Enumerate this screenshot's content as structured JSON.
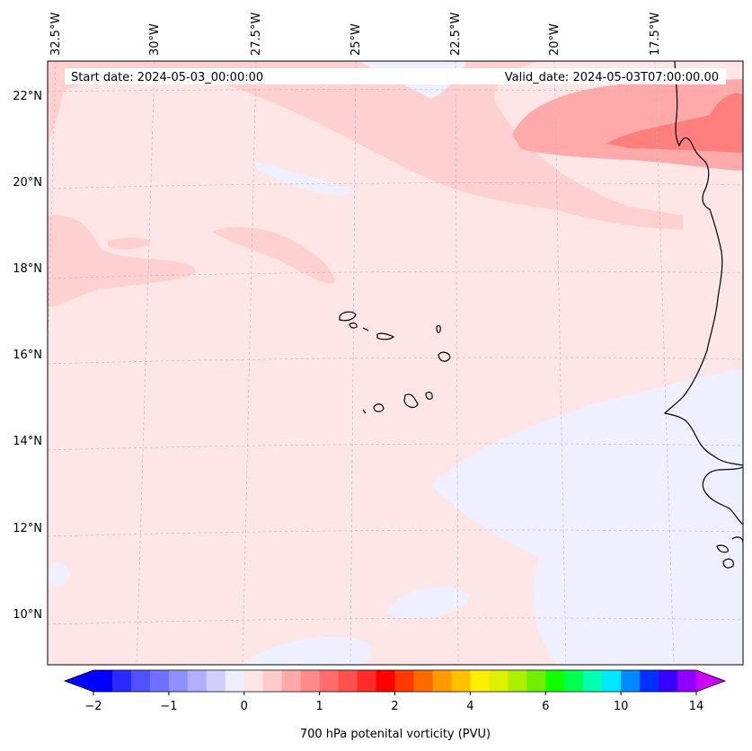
{
  "map": {
    "start_date": "Start date: 2024-05-03_00:00:00",
    "valid_date": "Valid_date: 2024-05-03T07:00:00.00",
    "lon_labels": [
      "32.5°W",
      "30°W",
      "27.5°W",
      "25°W",
      "22.5°W",
      "20°W",
      "17.5°W"
    ],
    "lat_labels": [
      "22°N",
      "20°N",
      "18°N",
      "16°N",
      "14°N",
      "12°N",
      "10°N"
    ],
    "region": "Cape Verde Islands and West African coast",
    "colors": {
      "background": "#ffe6e6",
      "light_pink": "#ffd0d0",
      "mid_pink": "#ffaaaa",
      "strong_pink": "#ff7f7f",
      "lavender": "#eef0ff",
      "coastline": "#000000",
      "gridline": "#bbbbbb"
    }
  },
  "colorbar": {
    "label": "700 hPa potenital vorticity (PVU)",
    "tick_labels": [
      "−2",
      "−1",
      "0",
      "1",
      "2",
      "4",
      "6",
      "10",
      "14"
    ],
    "colors": [
      "#0000ff",
      "#2a2aff",
      "#5050ff",
      "#7070ff",
      "#9090ff",
      "#b0b0ff",
      "#d0d0ff",
      "#eeeeff",
      "#ffe6e6",
      "#ffcaca",
      "#ffaaaa",
      "#ff8a8a",
      "#ff6a6a",
      "#ff5050",
      "#ff2a2a",
      "#ff0000",
      "#ff3a00",
      "#ff6a00",
      "#ff9a00",
      "#ffc000",
      "#fff000",
      "#ddf000",
      "#aaf000",
      "#70f000",
      "#10ff00",
      "#00ff50",
      "#00ffb0",
      "#00e8ff",
      "#0088ff",
      "#0030ff",
      "#3a00ff",
      "#9000ff"
    ],
    "min_extend_color": "#0000ff",
    "max_extend_color": "#cc00ff"
  }
}
